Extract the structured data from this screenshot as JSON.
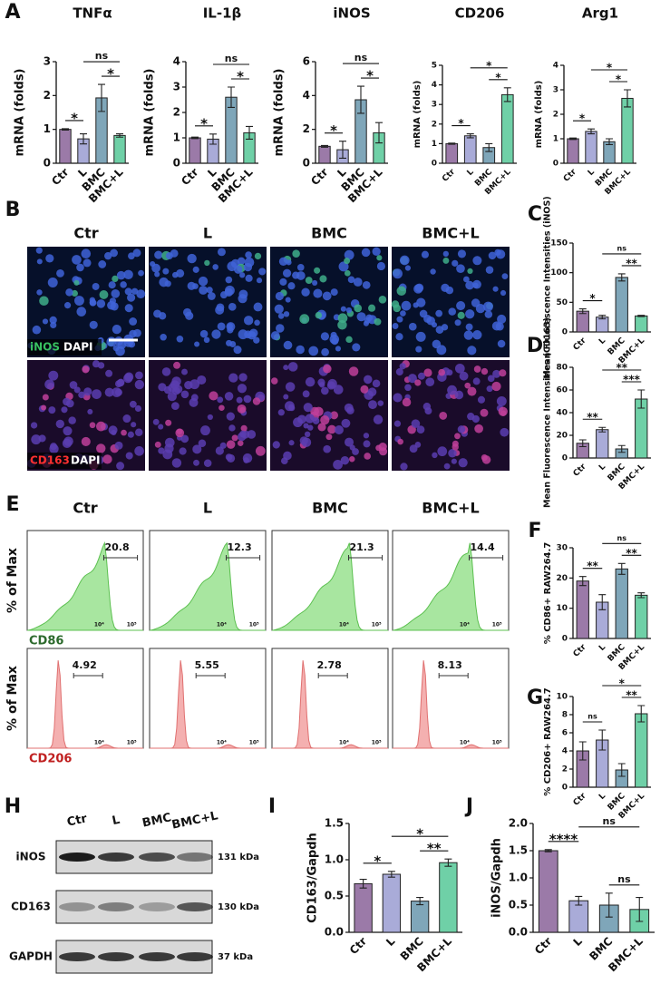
{
  "panel_letters": [
    "A",
    "B",
    "C",
    "D",
    "E",
    "F",
    "G",
    "H",
    "I",
    "J"
  ],
  "chart_data": [
    {
      "type": "bar",
      "title": "TNFα",
      "ylabel": "mRNA (folds)",
      "categories": [
        "Ctr",
        "L",
        "BMC",
        "BMC+L"
      ],
      "values": [
        1.0,
        0.72,
        1.93,
        0.82
      ],
      "errors": [
        0.02,
        0.15,
        0.4,
        0.05
      ],
      "colors": [
        "#9b7aa8",
        "#a9abd8",
        "#7fa6b9",
        "#6fd0a7"
      ],
      "ylim": [
        0,
        3
      ],
      "yticks": [
        0,
        1,
        2,
        3
      ],
      "annotations": [
        {
          "pair": [
            "Ctr",
            "L"
          ],
          "text": "*"
        },
        {
          "pair": [
            "BMC",
            "BMC+L"
          ],
          "text": "*"
        },
        {
          "pair": [
            "L",
            "BMC+L"
          ],
          "text": "ns"
        }
      ]
    },
    {
      "type": "bar",
      "title": "IL-1β",
      "ylabel": "mRNA (folds)",
      "categories": [
        "Ctr",
        "L",
        "BMC",
        "BMC+L"
      ],
      "values": [
        1.0,
        0.95,
        2.6,
        1.2
      ],
      "errors": [
        0.03,
        0.2,
        0.4,
        0.25
      ],
      "colors": [
        "#9b7aa8",
        "#a9abd8",
        "#7fa6b9",
        "#6fd0a7"
      ],
      "ylim": [
        0,
        4
      ],
      "yticks": [
        0,
        1,
        2,
        3,
        4
      ],
      "annotations": [
        {
          "pair": [
            "Ctr",
            "L"
          ],
          "text": "*"
        },
        {
          "pair": [
            "BMC",
            "BMC+L"
          ],
          "text": "*"
        },
        {
          "pair": [
            "L",
            "BMC+L"
          ],
          "text": "ns"
        }
      ]
    },
    {
      "type": "bar",
      "title": "iNOS",
      "ylabel": "mRNA (folds)",
      "categories": [
        "Ctr",
        "L",
        "BMC",
        "BMC+L"
      ],
      "values": [
        1.0,
        0.8,
        3.75,
        1.8
      ],
      "errors": [
        0.05,
        0.5,
        0.8,
        0.6
      ],
      "colors": [
        "#9b7aa8",
        "#a9abd8",
        "#7fa6b9",
        "#6fd0a7"
      ],
      "ylim": [
        0,
        6
      ],
      "yticks": [
        0,
        2,
        4,
        6
      ],
      "annotations": [
        {
          "pair": [
            "Ctr",
            "L"
          ],
          "text": "*"
        },
        {
          "pair": [
            "BMC",
            "BMC+L"
          ],
          "text": "*"
        },
        {
          "pair": [
            "L",
            "BMC+L"
          ],
          "text": "ns"
        }
      ]
    },
    {
      "type": "bar",
      "title": "CD206",
      "ylabel": "mRNA (folds)",
      "categories": [
        "Ctr",
        "L",
        "BMC",
        "BMC+L"
      ],
      "values": [
        1.0,
        1.4,
        0.8,
        3.5
      ],
      "errors": [
        0.03,
        0.1,
        0.2,
        0.35
      ],
      "colors": [
        "#9b7aa8",
        "#a9abd8",
        "#7fa6b9",
        "#6fd0a7"
      ],
      "ylim": [
        0,
        5
      ],
      "yticks": [
        0,
        1,
        2,
        3,
        4,
        5
      ],
      "annotations": [
        {
          "pair": [
            "Ctr",
            "L"
          ],
          "text": "*"
        },
        {
          "pair": [
            "BMC",
            "BMC+L"
          ],
          "text": "*"
        },
        {
          "pair": [
            "L",
            "BMC+L"
          ],
          "text": "*"
        }
      ]
    },
    {
      "type": "bar",
      "title": "Arg1",
      "ylabel": "mRNA (folds)",
      "categories": [
        "Ctr",
        "L",
        "BMC",
        "BMC+L"
      ],
      "values": [
        1.0,
        1.3,
        0.88,
        2.65
      ],
      "errors": [
        0.03,
        0.1,
        0.12,
        0.35
      ],
      "colors": [
        "#9b7aa8",
        "#a9abd8",
        "#7fa6b9",
        "#6fd0a7"
      ],
      "ylim": [
        0,
        4
      ],
      "yticks": [
        0,
        1,
        2,
        3,
        4
      ],
      "annotations": [
        {
          "pair": [
            "Ctr",
            "L"
          ],
          "text": "*"
        },
        {
          "pair": [
            "BMC",
            "BMC+L"
          ],
          "text": "*"
        },
        {
          "pair": [
            "L",
            "BMC+L"
          ],
          "text": "*"
        }
      ]
    },
    {
      "type": "bar",
      "ylabel": "Mean Fluorescence Intensities (iNOS)",
      "categories": [
        "Ctr",
        "L",
        "BMC",
        "BMC+L"
      ],
      "values": [
        35,
        25,
        92,
        27
      ],
      "errors": [
        4,
        3,
        6,
        1
      ],
      "colors": [
        "#9b7aa8",
        "#a9abd8",
        "#7fa6b9",
        "#6fd0a7"
      ],
      "ylim": [
        0,
        150
      ],
      "yticks": [
        0,
        50,
        100,
        150
      ],
      "annotations": [
        {
          "pair": [
            "Ctr",
            "L"
          ],
          "text": "*"
        },
        {
          "pair": [
            "BMC",
            "BMC+L"
          ],
          "text": "**"
        },
        {
          "pair": [
            "L",
            "BMC+L"
          ],
          "text": "ns"
        }
      ]
    },
    {
      "type": "bar",
      "ylabel": "Mean Fluorescence Intensities (CD163)",
      "categories": [
        "Ctr",
        "L",
        "BMC",
        "BMC+L"
      ],
      "values": [
        13,
        25,
        8,
        52
      ],
      "errors": [
        3,
        2,
        3,
        8
      ],
      "colors": [
        "#9b7aa8",
        "#a9abd8",
        "#7fa6b9",
        "#6fd0a7"
      ],
      "ylim": [
        0,
        80
      ],
      "yticks": [
        0,
        20,
        40,
        60,
        80
      ],
      "annotations": [
        {
          "pair": [
            "Ctr",
            "L"
          ],
          "text": "**"
        },
        {
          "pair": [
            "BMC",
            "BMC+L"
          ],
          "text": "***"
        },
        {
          "pair": [
            "L",
            "BMC+L"
          ],
          "text": "**"
        }
      ]
    },
    {
      "type": "bar",
      "ylabel": "% CD86+ RAW264.7",
      "categories": [
        "Ctr",
        "L",
        "BMC",
        "BMC+L"
      ],
      "values": [
        19,
        12,
        23,
        14.3
      ],
      "errors": [
        1.5,
        2.5,
        1.8,
        0.8
      ],
      "colors": [
        "#9b7aa8",
        "#a9abd8",
        "#7fa6b9",
        "#6fd0a7"
      ],
      "ylim": [
        0,
        30
      ],
      "yticks": [
        0,
        10,
        20,
        30
      ],
      "annotations": [
        {
          "pair": [
            "Ctr",
            "L"
          ],
          "text": "**"
        },
        {
          "pair": [
            "BMC",
            "BMC+L"
          ],
          "text": "**"
        },
        {
          "pair": [
            "L",
            "BMC+L"
          ],
          "text": "ns"
        }
      ]
    },
    {
      "type": "bar",
      "ylabel": "% CD206+ RAW264.7",
      "categories": [
        "Ctr",
        "L",
        "BMC",
        "BMC+L"
      ],
      "values": [
        4,
        5.2,
        1.9,
        8.1
      ],
      "errors": [
        1,
        1.1,
        0.7,
        0.9
      ],
      "colors": [
        "#9b7aa8",
        "#a9abd8",
        "#7fa6b9",
        "#6fd0a7"
      ],
      "ylim": [
        0,
        10
      ],
      "yticks": [
        0,
        2,
        4,
        6,
        8,
        10
      ],
      "annotations": [
        {
          "pair": [
            "Ctr",
            "L"
          ],
          "text": "ns"
        },
        {
          "pair": [
            "BMC",
            "BMC+L"
          ],
          "text": "**"
        },
        {
          "pair": [
            "L",
            "BMC+L"
          ],
          "text": "*"
        }
      ]
    },
    {
      "type": "bar",
      "ylabel": "CD163/Gapdh",
      "categories": [
        "Ctr",
        "L",
        "BMC",
        "BMC+L"
      ],
      "values": [
        0.67,
        0.8,
        0.43,
        0.96
      ],
      "errors": [
        0.06,
        0.04,
        0.05,
        0.05
      ],
      "colors": [
        "#9b7aa8",
        "#a9abd8",
        "#7fa6b9",
        "#6fd0a7"
      ],
      "ylim": [
        0,
        1.5
      ],
      "yticks": [
        {
          "value": 0,
          "label": "0.0"
        },
        0.5,
        {
          "value": 1,
          "label": "1.0"
        },
        1.5
      ],
      "annotations": [
        {
          "pair": [
            "Ctr",
            "L"
          ],
          "text": "*"
        },
        {
          "pair": [
            "BMC",
            "BMC+L"
          ],
          "text": "**"
        },
        {
          "pair": [
            "L",
            "BMC+L"
          ],
          "text": "*"
        }
      ]
    },
    {
      "type": "bar",
      "ylabel": "iNOS/Gapdh",
      "categories": [
        "Ctr",
        "L",
        "BMC",
        "BMC+L"
      ],
      "values": [
        1.5,
        0.58,
        0.5,
        0.42
      ],
      "errors": [
        0.02,
        0.08,
        0.22,
        0.22
      ],
      "colors": [
        "#9b7aa8",
        "#a9abd8",
        "#7fa6b9",
        "#6fd0a7"
      ],
      "ylim": [
        0,
        2
      ],
      "yticks": [
        {
          "value": 0,
          "label": "0.0"
        },
        0.5,
        {
          "value": 1,
          "label": "1.0"
        },
        1.5,
        {
          "value": 2,
          "label": "2.0"
        }
      ],
      "annotations": [
        {
          "pair": [
            "Ctr",
            "L"
          ],
          "text": "****"
        },
        {
          "pair": [
            "BMC",
            "BMC+L"
          ],
          "text": "ns"
        },
        {
          "pair": [
            "L",
            "BMC+L"
          ],
          "text": "ns"
        }
      ]
    }
  ],
  "imaging": {
    "columns": [
      "Ctr",
      "L",
      "BMC",
      "BMC+L"
    ],
    "rows": [
      {
        "stain": "iNOS",
        "counterstain": "DAPI"
      },
      {
        "stain": "CD163",
        "counterstain": "DAPI"
      }
    ]
  },
  "flow": {
    "columns": [
      "Ctr",
      "L",
      "BMC",
      "BMC+L"
    ],
    "y_label": "% of Max",
    "axis_ticks": [
      "10⁴",
      "10⁵"
    ],
    "rows": [
      {
        "marker": "CD86",
        "gates": [
          20.8,
          12.3,
          21.3,
          14.4
        ]
      },
      {
        "marker": "CD206",
        "gates": [
          4.92,
          5.55,
          2.78,
          8.13
        ]
      }
    ]
  },
  "blot": {
    "columns": [
      "Ctr",
      "L",
      "BMC",
      "BMC+L"
    ],
    "rows": [
      {
        "protein": "iNOS",
        "size": "131 kDa"
      },
      {
        "protein": "CD163",
        "size": "130 kDa"
      },
      {
        "protein": "GAPDH",
        "size": "37 kDa"
      }
    ]
  }
}
